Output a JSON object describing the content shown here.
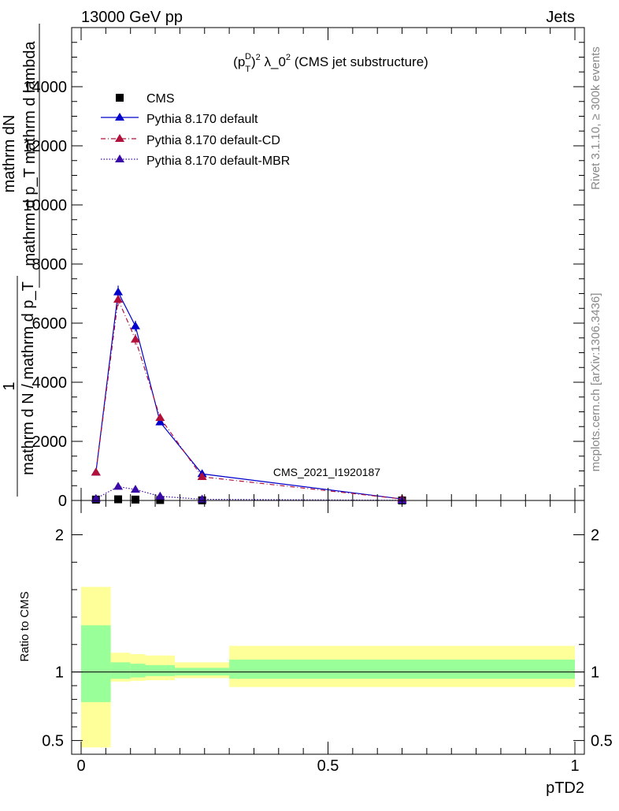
{
  "header": {
    "left": "13000 GeV pp",
    "right": "Jets"
  },
  "side": {
    "rivet": "Rivet 3.1.10, ≥ 300k events",
    "mcplots": "mcplots.cern.ch [arXiv:1306.3436]"
  },
  "main": {
    "title": "(p_T^D)^2 λ_0^2 (CMS jet substructure)",
    "watermark": "CMS_2021_I1920187",
    "ylabel_one": "1",
    "ylabel_num": "mathrm dN",
    "ylabel_den_a": "mathrm d N / mathrm d p_T",
    "ylabel_den_b": "mathrm d p_T mathrm d lambda"
  },
  "ratio": {
    "ylabel": "Ratio to CMS"
  },
  "xlabel": "pTD2",
  "legend": [
    {
      "label": "CMS"
    },
    {
      "label": "Pythia 8.170 default"
    },
    {
      "label": "Pythia 8.170 default-CD"
    },
    {
      "label": "Pythia 8.170 default-MBR"
    }
  ],
  "chart_data": [
    {
      "type": "line",
      "panel": "main",
      "title": "(p_T^D)^2 λ_0^2 (CMS jet substructure)",
      "xlabel": "pTD2",
      "ylabel": "1/(mathrm d N / mathrm d p_T) mathrm dN/(mathrm d p_T mathrm d lambda)",
      "xlim": [
        -0.02,
        1.02
      ],
      "ylim": [
        0,
        16000
      ],
      "yticks": [
        0,
        2000,
        4000,
        6000,
        8000,
        10000,
        12000,
        14000
      ],
      "ytick_labels": [
        "0",
        "2000",
        "4000",
        "6000",
        "8000",
        "10000",
        "12000",
        "14000"
      ],
      "series": [
        {
          "name": "CMS",
          "style": "marker",
          "color": "#000000",
          "x": [
            0.03,
            0.075,
            0.11,
            0.16,
            0.245,
            0.65
          ],
          "y": [
            30,
            40,
            30,
            15,
            5,
            1
          ],
          "err": [
            0,
            0,
            0,
            0,
            0,
            0
          ]
        },
        {
          "name": "Pythia 8.170 default",
          "style": "solid",
          "color": "#0000cc",
          "x": [
            0.03,
            0.075,
            0.11,
            0.16,
            0.245,
            0.65
          ],
          "y": [
            950,
            7050,
            5900,
            2650,
            900,
            50
          ],
          "err": [
            60,
            220,
            180,
            100,
            40,
            10
          ]
        },
        {
          "name": "Pythia 8.170 default-CD",
          "style": "dashdot",
          "color": "#b0103a",
          "x": [
            0.03,
            0.075,
            0.11,
            0.16,
            0.245,
            0.65
          ],
          "y": [
            950,
            6800,
            5450,
            2800,
            800,
            50
          ],
          "err": [
            60,
            220,
            180,
            100,
            40,
            10
          ]
        },
        {
          "name": "Pythia 8.170 default-MBR",
          "style": "dotted",
          "color": "#3a0aa8",
          "x": [
            0.03,
            0.075,
            0.11,
            0.16,
            0.245,
            0.65
          ],
          "y": [
            60,
            470,
            370,
            140,
            40,
            5
          ],
          "err": [
            10,
            30,
            30,
            15,
            5,
            2
          ]
        }
      ]
    },
    {
      "type": "area",
      "panel": "ratio",
      "ylabel": "Ratio to CMS",
      "xlabel": "pTD2",
      "xlim": [
        -0.02,
        1.02
      ],
      "ylim": [
        0.4,
        2.25
      ],
      "yticks": [
        0.5,
        1,
        2
      ],
      "ytick_labels": [
        "0.5",
        "1",
        "2"
      ],
      "xticks": [
        0,
        0.5,
        1
      ],
      "xtick_labels": [
        "0",
        "0.5",
        "1"
      ],
      "bands": [
        {
          "x0": 0.0,
          "x1": 0.06,
          "yellow": [
            0.45,
            1.62
          ],
          "green": [
            0.78,
            1.34
          ]
        },
        {
          "x0": 0.06,
          "x1": 0.1,
          "yellow": [
            0.93,
            1.14
          ],
          "green": [
            0.95,
            1.07
          ]
        },
        {
          "x0": 0.1,
          "x1": 0.13,
          "yellow": [
            0.935,
            1.13
          ],
          "green": [
            0.96,
            1.06
          ]
        },
        {
          "x0": 0.13,
          "x1": 0.19,
          "yellow": [
            0.94,
            1.12
          ],
          "green": [
            0.97,
            1.05
          ]
        },
        {
          "x0": 0.19,
          "x1": 0.3,
          "yellow": [
            0.955,
            1.07
          ],
          "green": [
            0.975,
            1.03
          ]
        },
        {
          "x0": 0.3,
          "x1": 1.0,
          "yellow": [
            0.89,
            1.19
          ],
          "green": [
            0.95,
            1.09
          ]
        }
      ],
      "reference_line": 1
    }
  ]
}
